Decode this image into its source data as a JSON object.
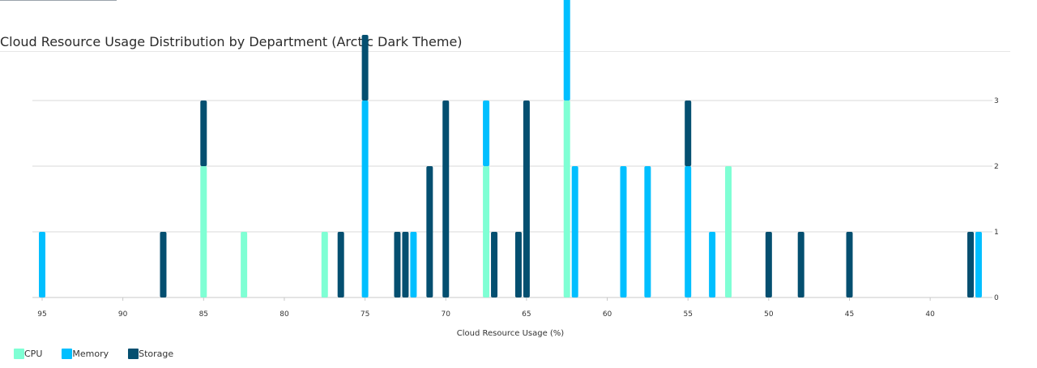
{
  "chart_data": {
    "type": "bar",
    "stacked": true,
    "title": "Cloud Resource Usage Distribution by Department (Arctic Dark Theme)",
    "xlabel": "Cloud Resource Usage (%)",
    "ylabel": "",
    "x_reversed": true,
    "xlim": [
      96,
      37.5
    ],
    "ylim": [
      0,
      3
    ],
    "x_ticks": [
      "95",
      "90",
      "85",
      "80",
      "75",
      "70",
      "65",
      "60",
      "55",
      "50",
      "45",
      "40"
    ],
    "y_ticks": [
      "0",
      "1",
      "2",
      "3"
    ],
    "y_axis_side": "right",
    "legend_position": "bottom-left",
    "series": [
      {
        "name": "CPU",
        "color": "#7fffd4",
        "points": [
          [
            85,
            2
          ],
          [
            82.5,
            1
          ],
          [
            77.5,
            1
          ],
          [
            67.5,
            2
          ],
          [
            62.5,
            3
          ],
          [
            52.5,
            2
          ]
        ]
      },
      {
        "name": "Memory",
        "color": "#00bfff",
        "points": [
          [
            95,
            1
          ],
          [
            75,
            3
          ],
          [
            72,
            1
          ],
          [
            67.5,
            1
          ],
          [
            62.5,
            2
          ],
          [
            62,
            2
          ],
          [
            59,
            2
          ],
          [
            57.5,
            2
          ],
          [
            55,
            2
          ],
          [
            53.5,
            1
          ],
          [
            37,
            1
          ]
        ]
      },
      {
        "name": "Storage",
        "color": "#044f70",
        "points": [
          [
            87.5,
            1
          ],
          [
            85,
            1
          ],
          [
            76.5,
            1
          ],
          [
            75,
            1
          ],
          [
            73,
            1
          ],
          [
            72.5,
            1
          ],
          [
            71,
            2
          ],
          [
            70,
            3
          ],
          [
            67,
            1
          ],
          [
            65.5,
            1
          ],
          [
            65,
            3
          ],
          [
            55,
            1
          ],
          [
            50,
            1
          ],
          [
            48,
            1
          ],
          [
            45,
            1
          ],
          [
            37.5,
            1
          ]
        ]
      }
    ]
  }
}
